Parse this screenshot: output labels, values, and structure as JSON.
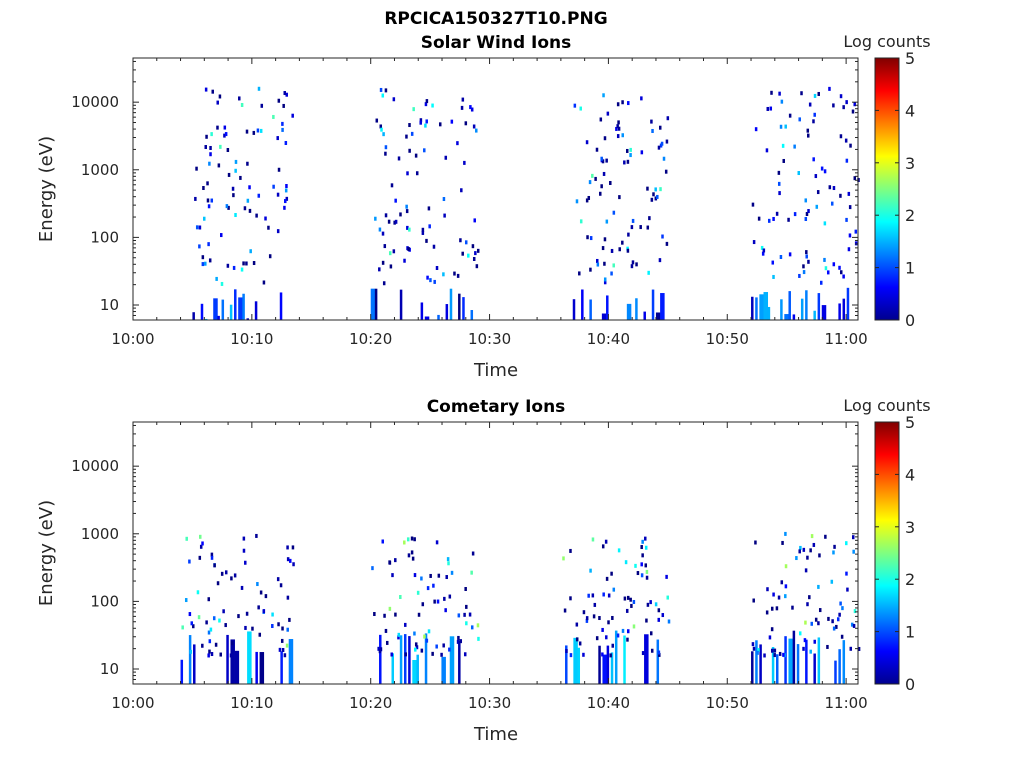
{
  "figure": {
    "title": "RPCICA150327T10.PNG"
  },
  "colorbar": {
    "label": "Log counts",
    "min": 0,
    "max": 5,
    "ticks": [
      "0",
      "1",
      "2",
      "3",
      "4",
      "5"
    ]
  },
  "chart_data": [
    {
      "type": "heatmap",
      "title": "Solar Wind Ions",
      "xlabel": "Time",
      "ylabel": "Energy (eV)",
      "yscale": "log",
      "xlim": [
        "10:00",
        "11:01"
      ],
      "ylim": [
        6,
        45000
      ],
      "xticks": [
        "10:00",
        "10:10",
        "10:20",
        "10:30",
        "10:40",
        "10:50",
        "11:00"
      ],
      "yticks": [
        "10",
        "100",
        "1000",
        "10000"
      ],
      "colorbar": "Log counts",
      "clim": [
        0,
        5
      ],
      "bursts_minutes": [
        [
          5,
          13.5
        ],
        [
          20,
          29
        ],
        [
          37,
          45
        ],
        [
          52,
          61
        ]
      ],
      "max_log_counts": 2.3
    },
    {
      "type": "heatmap",
      "title": "Cometary Ions",
      "xlabel": "Time",
      "ylabel": "Energy (eV)",
      "yscale": "log",
      "xlim": [
        "10:00",
        "11:01"
      ],
      "ylim": [
        6,
        45000
      ],
      "xticks": [
        "10:00",
        "10:10",
        "10:20",
        "10:30",
        "10:40",
        "10:50",
        "11:00"
      ],
      "yticks": [
        "10",
        "100",
        "1000",
        "10000"
      ],
      "colorbar": "Log counts",
      "clim": [
        0,
        5
      ],
      "bursts_minutes": [
        [
          4,
          13.5
        ],
        [
          20,
          29
        ],
        [
          36,
          45
        ],
        [
          52,
          61
        ]
      ],
      "max_log_counts": 2.8
    }
  ]
}
